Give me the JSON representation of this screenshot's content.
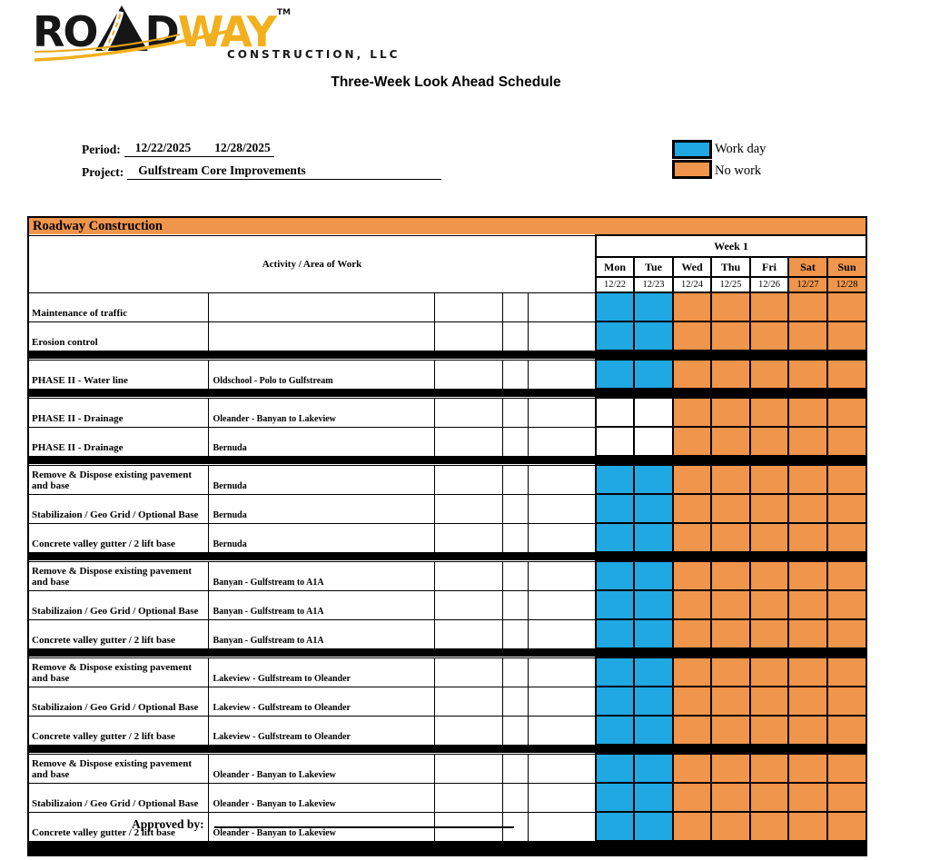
{
  "logo": {
    "part1": "RO",
    "part2": "D",
    "part3": "WAY",
    "tm": "TM",
    "tagline": "CONSTRUCTION, LLC"
  },
  "title": "Three-Week Look Ahead Schedule",
  "meta": {
    "period_label": "Period:",
    "period_start": "12/22/2025",
    "period_end": "12/28/2025",
    "project_label": "Project:",
    "project_value": "Gulfstream Core Improvements"
  },
  "legend": {
    "items": [
      {
        "label": "Work day",
        "key": "work"
      },
      {
        "label": "No work",
        "key": "off"
      }
    ]
  },
  "colors": {
    "work": "#1FA8E1",
    "off": "#F0954C",
    "logo_gold": "#F2B01E"
  },
  "table": {
    "company_header": "Roadway Construction",
    "activity_header": "Activity / Area of Work",
    "week_header": "Week 1",
    "days": [
      {
        "name": "Mon",
        "date": "12/22",
        "weekend": false
      },
      {
        "name": "Tue",
        "date": "12/23",
        "weekend": false
      },
      {
        "name": "Wed",
        "date": "12/24",
        "weekend": false
      },
      {
        "name": "Thu",
        "date": "12/25",
        "weekend": false
      },
      {
        "name": "Fri",
        "date": "12/26",
        "weekend": false
      },
      {
        "name": "Sat",
        "date": "12/27",
        "weekend": true
      },
      {
        "name": "Sun",
        "date": "12/28",
        "weekend": true
      }
    ],
    "sections": [
      {
        "rows": [
          {
            "activity": "Maintenance of traffic",
            "area": "",
            "cells": [
              "work",
              "work",
              "off",
              "off",
              "off",
              "off",
              "off"
            ]
          },
          {
            "activity": "Erosion control",
            "area": "",
            "cells": [
              "work",
              "work",
              "off",
              "off",
              "off",
              "off",
              "off"
            ]
          }
        ]
      },
      {
        "rows": [
          {
            "activity": "PHASE II - Water line",
            "area": "Oldschool - Polo to Gulfstream",
            "cells": [
              "work",
              "work",
              "off",
              "off",
              "off",
              "off",
              "off"
            ]
          }
        ]
      },
      {
        "rows": [
          {
            "activity": "PHASE II - Drainage",
            "area": "Oleander - Banyan to Lakeview",
            "cells": [
              "none",
              "none",
              "off",
              "off",
              "off",
              "off",
              "off"
            ]
          },
          {
            "activity": "PHASE II - Drainage",
            "area": "Bernuda",
            "cells": [
              "none",
              "none",
              "off",
              "off",
              "off",
              "off",
              "off"
            ]
          }
        ]
      },
      {
        "rows": [
          {
            "activity": "Remove & Dispose existing pavement and base",
            "area": "Bernuda",
            "cells": [
              "work",
              "work",
              "off",
              "off",
              "off",
              "off",
              "off"
            ]
          },
          {
            "activity": "Stabilizaion / Geo Grid /  Optional Base",
            "area": "Bernuda",
            "cells": [
              "work",
              "work",
              "off",
              "off",
              "off",
              "off",
              "off"
            ]
          },
          {
            "activity": "Concrete valley gutter / 2 lift base",
            "area": "Bernuda",
            "cells": [
              "work",
              "work",
              "off",
              "off",
              "off",
              "off",
              "off"
            ]
          }
        ]
      },
      {
        "rows": [
          {
            "activity": "Remove & Dispose existing pavement and base",
            "area": "Banyan - Gulfstream to A1A",
            "cells": [
              "work",
              "work",
              "off",
              "off",
              "off",
              "off",
              "off"
            ]
          },
          {
            "activity": "Stabilizaion / Geo Grid /  Optional Base",
            "area": "Banyan - Gulfstream to A1A",
            "cells": [
              "work",
              "work",
              "off",
              "off",
              "off",
              "off",
              "off"
            ]
          },
          {
            "activity": "Concrete valley gutter / 2 lift base",
            "area": "Banyan - Gulfstream to A1A",
            "cells": [
              "work",
              "work",
              "off",
              "off",
              "off",
              "off",
              "off"
            ]
          }
        ]
      },
      {
        "rows": [
          {
            "activity": "Remove & Dispose existing pavement and base",
            "area": "Lakeview - Gulfstream to Oleander",
            "cells": [
              "work",
              "work",
              "off",
              "off",
              "off",
              "off",
              "off"
            ]
          },
          {
            "activity": "Stabilizaion / Geo Grid /  Optional Base",
            "area": "Lakeview - Gulfstream to Oleander",
            "cells": [
              "work",
              "work",
              "off",
              "off",
              "off",
              "off",
              "off"
            ]
          },
          {
            "activity": "Concrete valley gutter / 2 lift base",
            "area": "Lakeview - Gulfstream to Oleander",
            "cells": [
              "work",
              "work",
              "off",
              "off",
              "off",
              "off",
              "off"
            ]
          }
        ]
      },
      {
        "rows": [
          {
            "activity": "Remove & Dispose existing pavement and base",
            "area": "Oleander - Banyan to Lakeview",
            "cells": [
              "work",
              "work",
              "off",
              "off",
              "off",
              "off",
              "off"
            ]
          },
          {
            "activity": "Stabilizaion / Geo Grid /  Optional Base",
            "area": "Oleander - Banyan to Lakeview",
            "cells": [
              "work",
              "work",
              "off",
              "off",
              "off",
              "off",
              "off"
            ]
          },
          {
            "activity": "Concrete valley gutter / 2 lift base",
            "area": "Oleander - Banyan to Lakeview",
            "cells": [
              "work",
              "work",
              "off",
              "off",
              "off",
              "off",
              "off"
            ]
          }
        ]
      }
    ]
  },
  "footer": {
    "approved_label": "Approved by:"
  }
}
